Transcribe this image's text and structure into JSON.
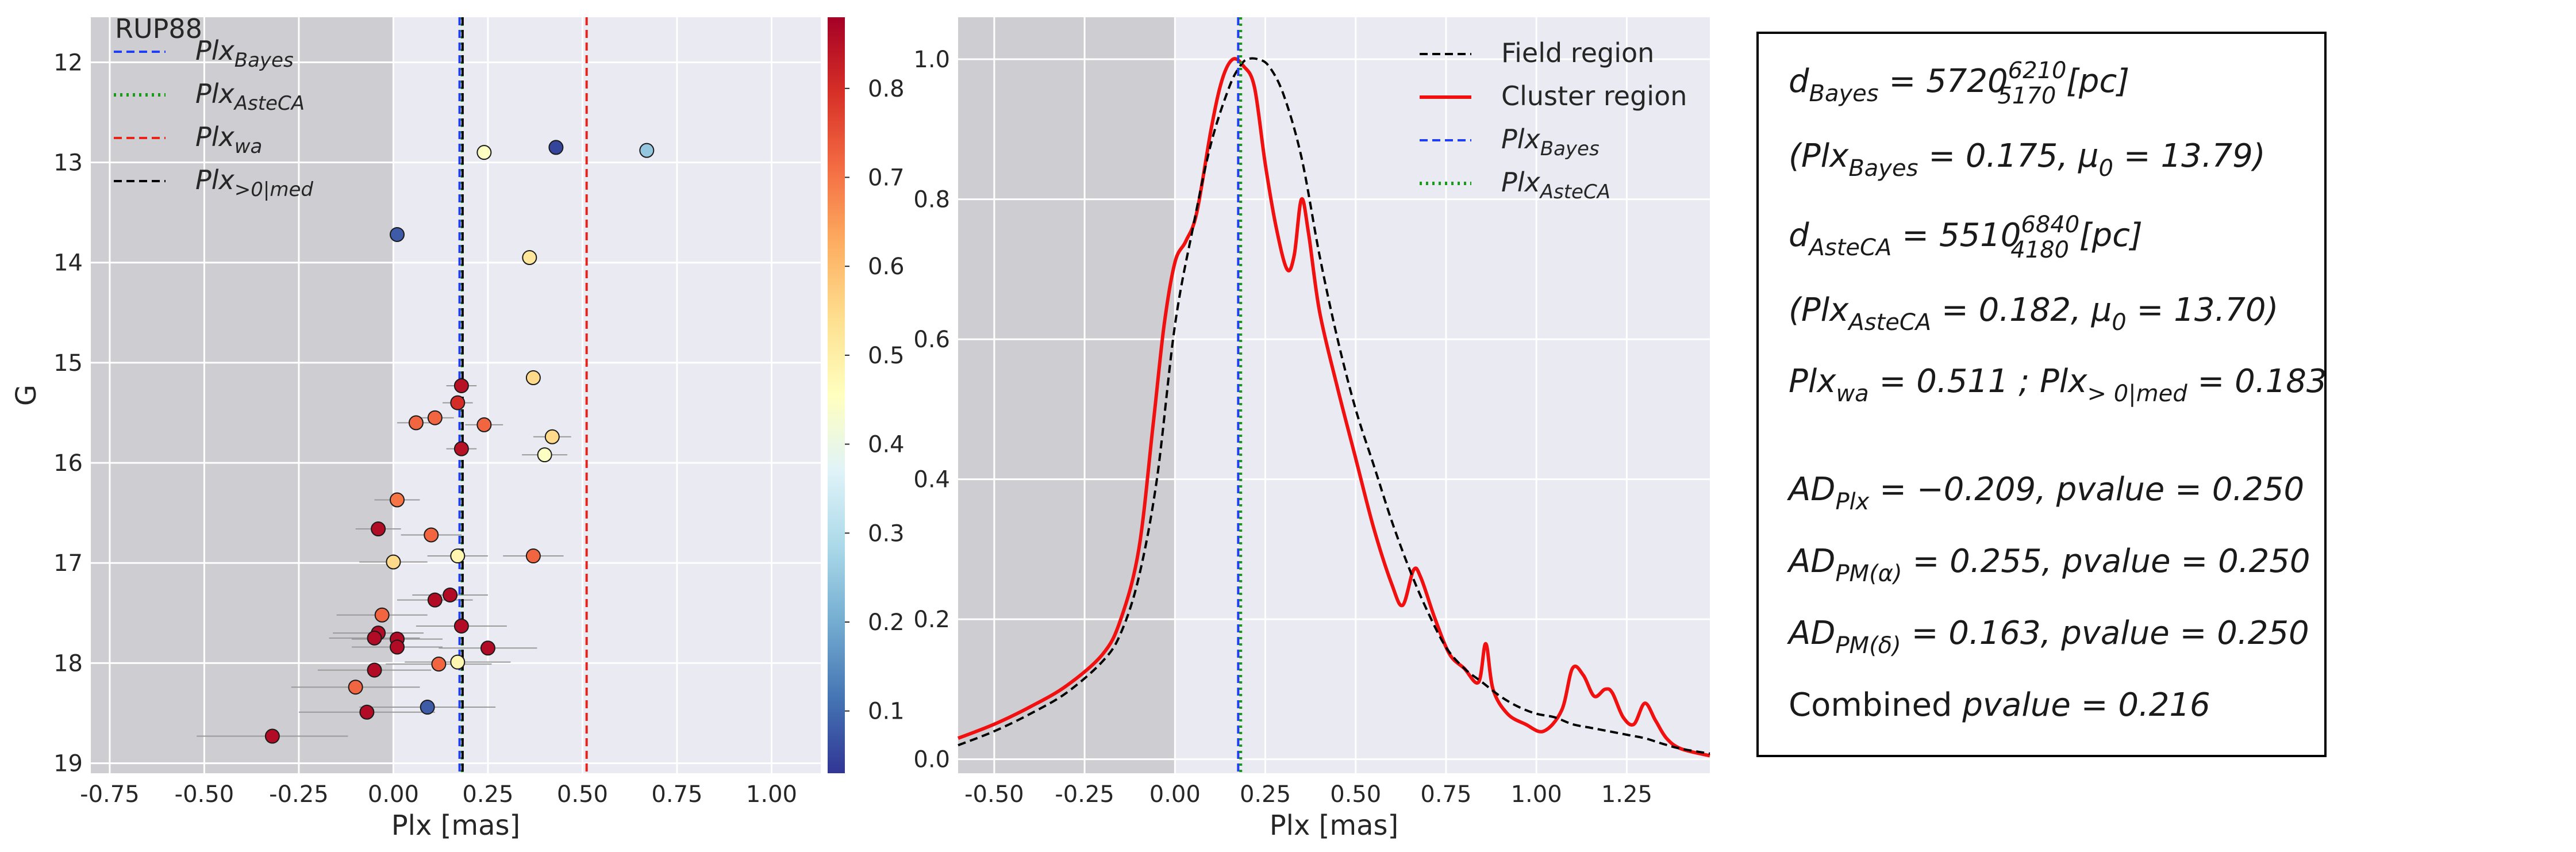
{
  "colors": {
    "axes_bg": "#eaeaf2",
    "grid": "#ffffff",
    "shade": "#c8c8cc",
    "bayes": "#1f3ff0",
    "asteca": "#1a9a1a",
    "wa": "#e8231a",
    "med": "#000000",
    "cluster": "#f01010",
    "field": "#000000"
  },
  "chart_data": [
    {
      "type": "scatter",
      "title": "RUP88",
      "xlabel": "Plx [mas]",
      "ylabel": "G",
      "xlim": [
        -0.8,
        1.13
      ],
      "ylim": [
        19.1,
        11.55
      ],
      "y_inverted": true,
      "xticks": [
        "-0.75",
        "-0.50",
        "-0.25",
        "0.00",
        "0.25",
        "0.50",
        "0.75",
        "1.00"
      ],
      "xtick_values": [
        -0.75,
        -0.5,
        -0.25,
        0.0,
        0.25,
        0.5,
        0.75,
        1.0
      ],
      "yticks": [
        "12",
        "13",
        "14",
        "15",
        "16",
        "17",
        "18",
        "19"
      ],
      "ytick_values": [
        12,
        13,
        14,
        15,
        16,
        17,
        18,
        19
      ],
      "grid": true,
      "shaded_region_x": [
        -0.8,
        0.0
      ],
      "vlines": [
        {
          "label": "Plx",
          "sub": "Bayes",
          "x": 0.175,
          "style": "dashed",
          "color": "#1f3ff0"
        },
        {
          "label": "Plx",
          "sub": "AsteCA",
          "x": 0.182,
          "style": "dotted",
          "color": "#1a9a1a"
        },
        {
          "label": "Plx",
          "sub": "wa",
          "x": 0.511,
          "style": "dashed",
          "color": "#e8231a"
        },
        {
          "label": "Plx",
          "sub": ">0|med",
          "x": 0.183,
          "style": "dashed",
          "color": "#000000"
        }
      ],
      "legend_position": "upper-left",
      "colorbar": {
        "ticks": [
          "0.1",
          "0.2",
          "0.3",
          "0.4",
          "0.5",
          "0.6",
          "0.7",
          "0.8"
        ],
        "tick_values": [
          0.1,
          0.2,
          0.3,
          0.4,
          0.5,
          0.6,
          0.7,
          0.8
        ],
        "range": [
          0.03,
          0.88
        ],
        "colormap": "RdYlBu_r"
      },
      "points": [
        {
          "x": 0.43,
          "y": 12.85,
          "err": 0.0,
          "c": 0.05
        },
        {
          "x": 0.24,
          "y": 12.9,
          "err": 0.0,
          "c": 0.45
        },
        {
          "x": 0.67,
          "y": 12.88,
          "err": 0.0,
          "c": 0.25
        },
        {
          "x": 0.01,
          "y": 13.72,
          "err": 0.0,
          "c": 0.08
        },
        {
          "x": 0.36,
          "y": 13.95,
          "err": 0.0,
          "c": 0.52
        },
        {
          "x": 0.37,
          "y": 15.15,
          "err": 0.0,
          "c": 0.55
        },
        {
          "x": 0.18,
          "y": 15.23,
          "err": 0.04,
          "c": 0.85
        },
        {
          "x": 0.17,
          "y": 15.4,
          "err": 0.04,
          "c": 0.8
        },
        {
          "x": 0.11,
          "y": 15.55,
          "err": 0.05,
          "c": 0.72
        },
        {
          "x": 0.06,
          "y": 15.6,
          "err": 0.05,
          "c": 0.72
        },
        {
          "x": 0.24,
          "y": 15.62,
          "err": 0.05,
          "c": 0.72
        },
        {
          "x": 0.42,
          "y": 15.74,
          "err": 0.05,
          "c": 0.55
        },
        {
          "x": 0.18,
          "y": 15.86,
          "err": 0.04,
          "c": 0.85
        },
        {
          "x": 0.4,
          "y": 15.92,
          "err": 0.06,
          "c": 0.45
        },
        {
          "x": 0.01,
          "y": 16.37,
          "err": 0.06,
          "c": 0.7
        },
        {
          "x": -0.04,
          "y": 16.66,
          "err": 0.06,
          "c": 0.86
        },
        {
          "x": 0.1,
          "y": 16.72,
          "err": 0.08,
          "c": 0.72
        },
        {
          "x": 0.17,
          "y": 16.93,
          "err": 0.08,
          "c": 0.48
        },
        {
          "x": 0.37,
          "y": 16.93,
          "err": 0.08,
          "c": 0.72
        },
        {
          "x": 0.0,
          "y": 16.99,
          "err": 0.09,
          "c": 0.55
        },
        {
          "x": 0.15,
          "y": 17.32,
          "err": 0.1,
          "c": 0.86
        },
        {
          "x": 0.11,
          "y": 17.37,
          "err": 0.1,
          "c": 0.86
        },
        {
          "x": -0.03,
          "y": 17.52,
          "err": 0.12,
          "c": 0.72
        },
        {
          "x": 0.18,
          "y": 17.63,
          "err": 0.12,
          "c": 0.86
        },
        {
          "x": -0.04,
          "y": 17.7,
          "err": 0.12,
          "c": 0.86
        },
        {
          "x": -0.05,
          "y": 17.75,
          "err": 0.12,
          "c": 0.86
        },
        {
          "x": 0.01,
          "y": 17.76,
          "err": 0.12,
          "c": 0.86
        },
        {
          "x": 0.01,
          "y": 17.84,
          "err": 0.12,
          "c": 0.86
        },
        {
          "x": 0.25,
          "y": 17.85,
          "err": 0.13,
          "c": 0.86
        },
        {
          "x": 0.17,
          "y": 17.99,
          "err": 0.14,
          "c": 0.48
        },
        {
          "x": 0.12,
          "y": 18.01,
          "err": 0.14,
          "c": 0.72
        },
        {
          "x": -0.05,
          "y": 18.07,
          "err": 0.15,
          "c": 0.86
        },
        {
          "x": -0.1,
          "y": 18.24,
          "err": 0.17,
          "c": 0.72
        },
        {
          "x": 0.09,
          "y": 18.44,
          "err": 0.18,
          "c": 0.08
        },
        {
          "x": -0.07,
          "y": 18.49,
          "err": 0.18,
          "c": 0.86
        },
        {
          "x": -0.32,
          "y": 18.73,
          "err": 0.2,
          "c": 0.86
        }
      ]
    },
    {
      "type": "line",
      "xlabel": "Plx [mas]",
      "ylabel": "",
      "xlim": [
        -0.6,
        1.48
      ],
      "ylim": [
        -0.02,
        1.06
      ],
      "xticks": [
        "-0.50",
        "-0.25",
        "0.00",
        "0.25",
        "0.50",
        "0.75",
        "1.00",
        "1.25"
      ],
      "xtick_values": [
        -0.5,
        -0.25,
        0.0,
        0.25,
        0.5,
        0.75,
        1.0,
        1.25
      ],
      "yticks": [
        "0.0",
        "0.2",
        "0.4",
        "0.6",
        "0.8",
        "1.0"
      ],
      "ytick_values": [
        0.0,
        0.2,
        0.4,
        0.6,
        0.8,
        1.0
      ],
      "grid": true,
      "shaded_region_x": [
        -0.6,
        0.0
      ],
      "legend_position": "upper-right",
      "vlines": [
        {
          "label": "Plx",
          "sub": "Bayes",
          "x": 0.175,
          "style": "dashed",
          "color": "#1f3ff0"
        },
        {
          "label": "Plx",
          "sub": "AsteCA",
          "x": 0.182,
          "style": "dotted",
          "color": "#1a9a1a"
        }
      ],
      "series": [
        {
          "name": "Field region",
          "style": "dashed",
          "color": "#000000",
          "x": [
            -0.6,
            -0.5,
            -0.4,
            -0.3,
            -0.2,
            -0.15,
            -0.1,
            -0.05,
            0.0,
            0.05,
            0.1,
            0.15,
            0.18,
            0.2,
            0.23,
            0.26,
            0.3,
            0.35,
            0.4,
            0.45,
            0.5,
            0.55,
            0.6,
            0.65,
            0.7,
            0.75,
            0.8,
            0.85,
            0.9,
            0.95,
            1.0,
            1.05,
            1.1,
            1.15,
            1.2,
            1.25,
            1.3,
            1.35,
            1.4,
            1.48
          ],
          "y": [
            0.02,
            0.04,
            0.065,
            0.095,
            0.14,
            0.18,
            0.26,
            0.4,
            0.62,
            0.76,
            0.88,
            0.96,
            0.99,
            1.0,
            1.0,
            0.99,
            0.95,
            0.86,
            0.72,
            0.6,
            0.5,
            0.42,
            0.34,
            0.27,
            0.21,
            0.16,
            0.13,
            0.11,
            0.09,
            0.075,
            0.065,
            0.06,
            0.05,
            0.045,
            0.04,
            0.035,
            0.03,
            0.022,
            0.015,
            0.008
          ]
        },
        {
          "name": "Cluster region",
          "style": "solid",
          "color": "#f01010",
          "x": [
            -0.6,
            -0.5,
            -0.4,
            -0.3,
            -0.2,
            -0.15,
            -0.1,
            -0.06,
            -0.03,
            0.0,
            0.03,
            0.06,
            0.1,
            0.13,
            0.16,
            0.19,
            0.22,
            0.25,
            0.28,
            0.31,
            0.33,
            0.35,
            0.37,
            0.4,
            0.45,
            0.5,
            0.55,
            0.6,
            0.63,
            0.66,
            0.68,
            0.72,
            0.76,
            0.8,
            0.84,
            0.86,
            0.88,
            0.92,
            0.97,
            1.02,
            1.07,
            1.1,
            1.13,
            1.16,
            1.19,
            1.21,
            1.24,
            1.27,
            1.3,
            1.33,
            1.36,
            1.4,
            1.48
          ],
          "y": [
            0.03,
            0.05,
            0.075,
            0.105,
            0.15,
            0.2,
            0.3,
            0.48,
            0.62,
            0.71,
            0.74,
            0.78,
            0.9,
            0.97,
            1.0,
            0.99,
            0.96,
            0.85,
            0.76,
            0.7,
            0.72,
            0.8,
            0.75,
            0.64,
            0.53,
            0.43,
            0.33,
            0.25,
            0.22,
            0.27,
            0.26,
            0.2,
            0.15,
            0.13,
            0.11,
            0.165,
            0.1,
            0.065,
            0.05,
            0.04,
            0.07,
            0.13,
            0.12,
            0.09,
            0.1,
            0.095,
            0.06,
            0.05,
            0.08,
            0.055,
            0.03,
            0.015,
            0.005
          ]
        }
      ]
    }
  ],
  "info_box": {
    "lines": [
      {
        "parts": [
          [
            "d",
            "i"
          ],
          [
            "Bayes",
            "s"
          ],
          [
            " = 5720",
            "i"
          ],
          [
            "6210",
            "u"
          ],
          [
            "5170",
            "l"
          ],
          [
            " [",
            "i"
          ],
          [
            "pc",
            "i"
          ],
          [
            "]",
            "i"
          ]
        ]
      },
      {
        "parts": [
          [
            "(",
            "i"
          ],
          [
            "Plx",
            "i"
          ],
          [
            "Bayes",
            "s"
          ],
          [
            " = 0.175, ",
            "i"
          ],
          [
            "μ",
            "i"
          ],
          [
            "0",
            "s"
          ],
          [
            " = 13.79)",
            "i"
          ]
        ]
      },
      {
        "parts": [
          [
            "d",
            "i"
          ],
          [
            "AsteCA",
            "s"
          ],
          [
            " = 5510",
            "i"
          ],
          [
            "6840",
            "u"
          ],
          [
            "4180",
            "l"
          ],
          [
            " [",
            "i"
          ],
          [
            "pc",
            "i"
          ],
          [
            "]",
            "i"
          ]
        ]
      },
      {
        "parts": [
          [
            "(",
            "i"
          ],
          [
            "Plx",
            "i"
          ],
          [
            "AsteCA",
            "s"
          ],
          [
            " = 0.182, ",
            "i"
          ],
          [
            "μ",
            "i"
          ],
          [
            "0",
            "s"
          ],
          [
            " = 13.70)",
            "i"
          ]
        ]
      },
      {
        "parts": [
          [
            "Plx",
            "i"
          ],
          [
            "wa",
            "s"
          ],
          [
            " = 0.511 ; ",
            "i"
          ],
          [
            "Plx",
            "i"
          ],
          [
            "> 0|med",
            "s"
          ],
          [
            " = 0.183",
            "i"
          ]
        ]
      },
      {
        "parts": [
          [
            "AD",
            "i"
          ],
          [
            "Plx",
            "s"
          ],
          [
            " = −0.209, ",
            "i"
          ],
          [
            "pvalue",
            "i"
          ],
          [
            " = 0.250",
            "i"
          ]
        ]
      },
      {
        "parts": [
          [
            "AD",
            "i"
          ],
          [
            "PM(α)",
            "s"
          ],
          [
            " = 0.255, ",
            "i"
          ],
          [
            "pvalue",
            "i"
          ],
          [
            " = 0.250",
            "i"
          ]
        ]
      },
      {
        "parts": [
          [
            "AD",
            "i"
          ],
          [
            "PM(δ)",
            "s"
          ],
          [
            " = 0.163, ",
            "i"
          ],
          [
            "pvalue",
            "i"
          ],
          [
            " = 0.250",
            "i"
          ]
        ]
      },
      {
        "parts": [
          [
            "Combined ",
            "n"
          ],
          [
            "pvalue",
            "i"
          ],
          [
            " = 0.216",
            "i"
          ]
        ]
      }
    ]
  }
}
